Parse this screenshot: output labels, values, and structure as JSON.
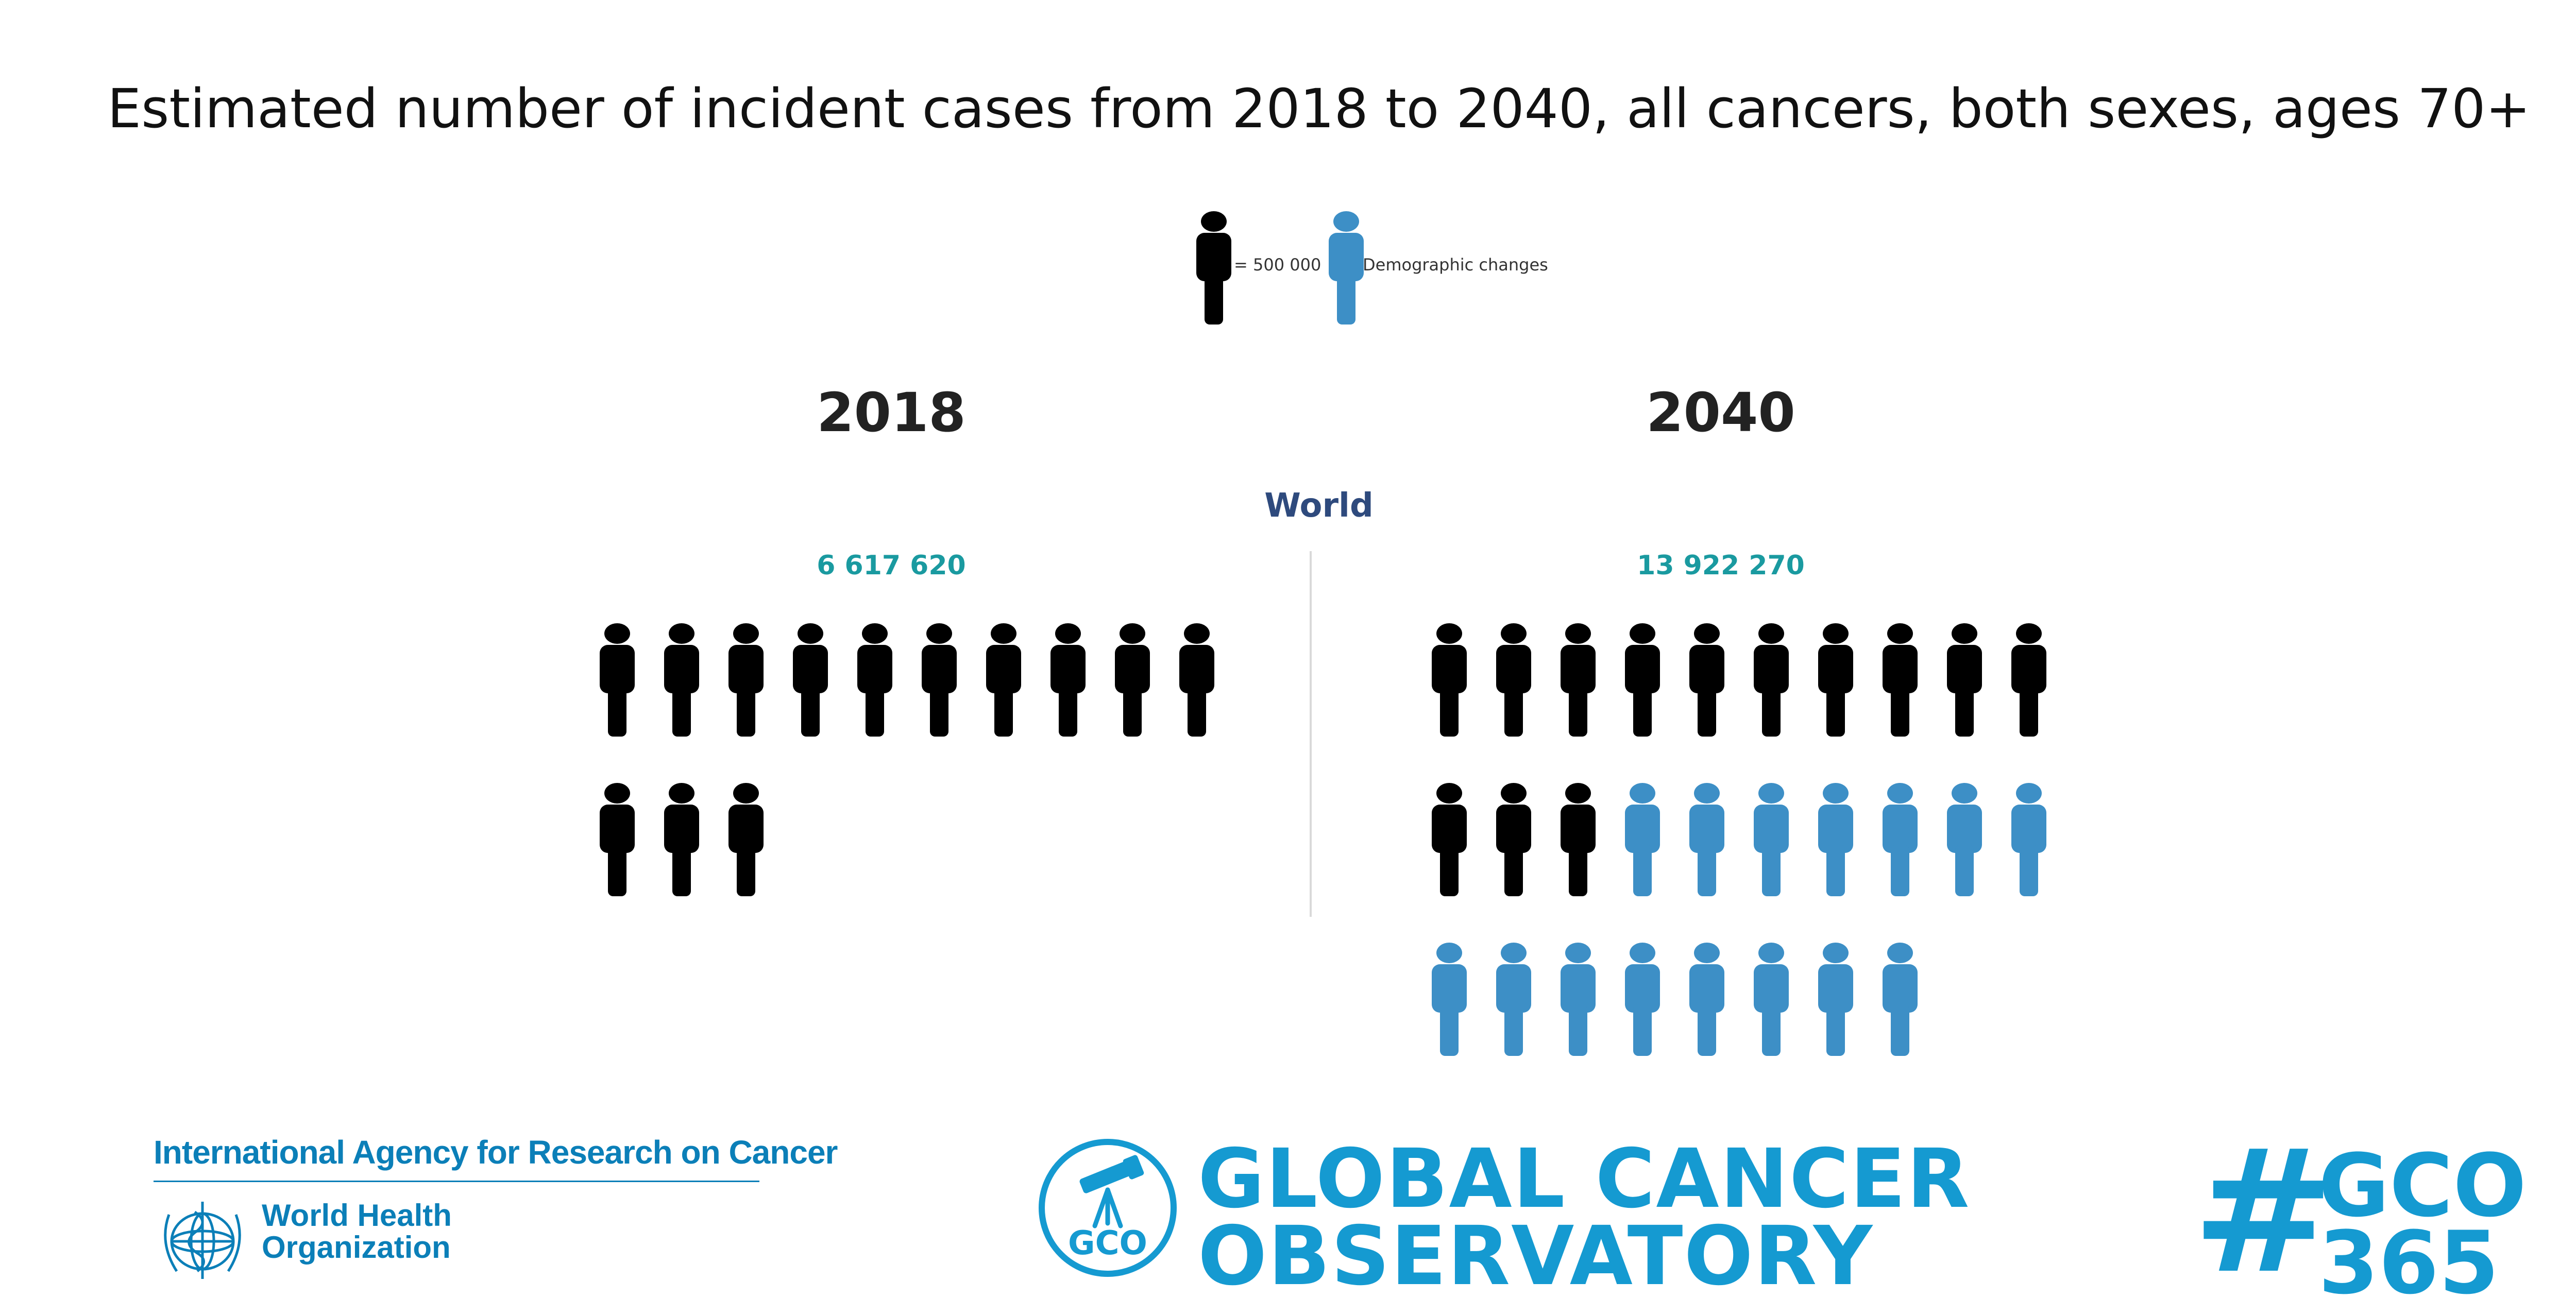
{
  "chart_data": {
    "type": "pictogram",
    "title": "Estimated number of incident cases from 2018 to 2040, all cancers, both sexes, ages 70+",
    "region": "World",
    "unit_label": "= 500 000",
    "unit_value": 500000,
    "legend": [
      {
        "name": "= 500 000",
        "color": "#000000"
      },
      {
        "name": "Demographic changes",
        "color": "#3d8fc6"
      }
    ],
    "series": [
      {
        "name": "2018",
        "total_label": "6 617 620",
        "total": 6617620,
        "black_icons": 13,
        "blue_icons": 0
      },
      {
        "name": "2040",
        "total_label": "13 922 270",
        "total": 13922270,
        "black_icons": 13,
        "blue_icons": 15
      }
    ],
    "icons_per_row": 10
  },
  "branding": {
    "iarc": "International Agency for Research on Cancer",
    "who_line1": "World Health",
    "who_line2": "Organization",
    "gco_badge": "GCO",
    "gco_line1": "GLOBAL CANCER",
    "gco_line2": "OBSERVATORY",
    "hashtag_symbol": "#",
    "hashtag_line1": "GCO",
    "hashtag_line2": "365"
  },
  "colors": {
    "black_icon": "#000000",
    "blue_icon": "#3d8fc6",
    "brand_blue": "#159ad1"
  }
}
